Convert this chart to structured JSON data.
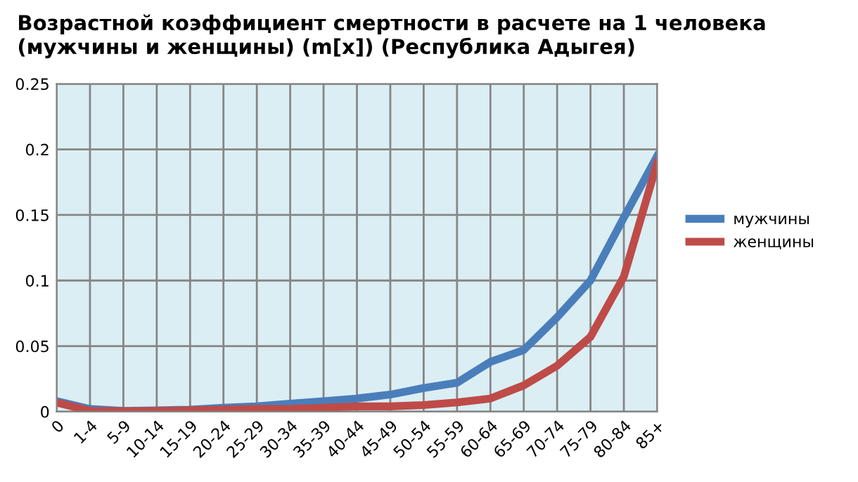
{
  "chart_data": {
    "type": "line",
    "title": "Возрастной коэффициент смертности в расчете на 1 человека (мужчины и женщины) (m[x]) (Республика Адыгея)",
    "categories": [
      "0",
      "1-4",
      "5-9",
      "10-14",
      "15-19",
      "20-24",
      "25-29",
      "30-34",
      "35-39",
      "40-44",
      "45-49",
      "50-54",
      "55-59",
      "60-64",
      "65-69",
      "70-74",
      "75-79",
      "80-84",
      "85+"
    ],
    "series": [
      {
        "name": "мужчины",
        "color": "#4a7ebb",
        "values": [
          0.008,
          0.002,
          0.0005,
          0.001,
          0.0015,
          0.003,
          0.004,
          0.006,
          0.008,
          0.01,
          0.013,
          0.018,
          0.022,
          0.038,
          0.047,
          0.072,
          0.1,
          0.148,
          0.195
        ]
      },
      {
        "name": "женщины",
        "color": "#be4b48",
        "values": [
          0.007,
          0.0005,
          0.0003,
          0.0005,
          0.001,
          0.0015,
          0.002,
          0.002,
          0.003,
          0.004,
          0.004,
          0.005,
          0.007,
          0.01,
          0.02,
          0.035,
          0.057,
          0.103,
          0.19
        ]
      }
    ],
    "ylim": [
      0,
      0.25
    ],
    "yticks": [
      0,
      0.05,
      0.1,
      0.15,
      0.2,
      0.25
    ],
    "grid": true,
    "legend": "right",
    "marker": "none",
    "line_style": "solid"
  }
}
